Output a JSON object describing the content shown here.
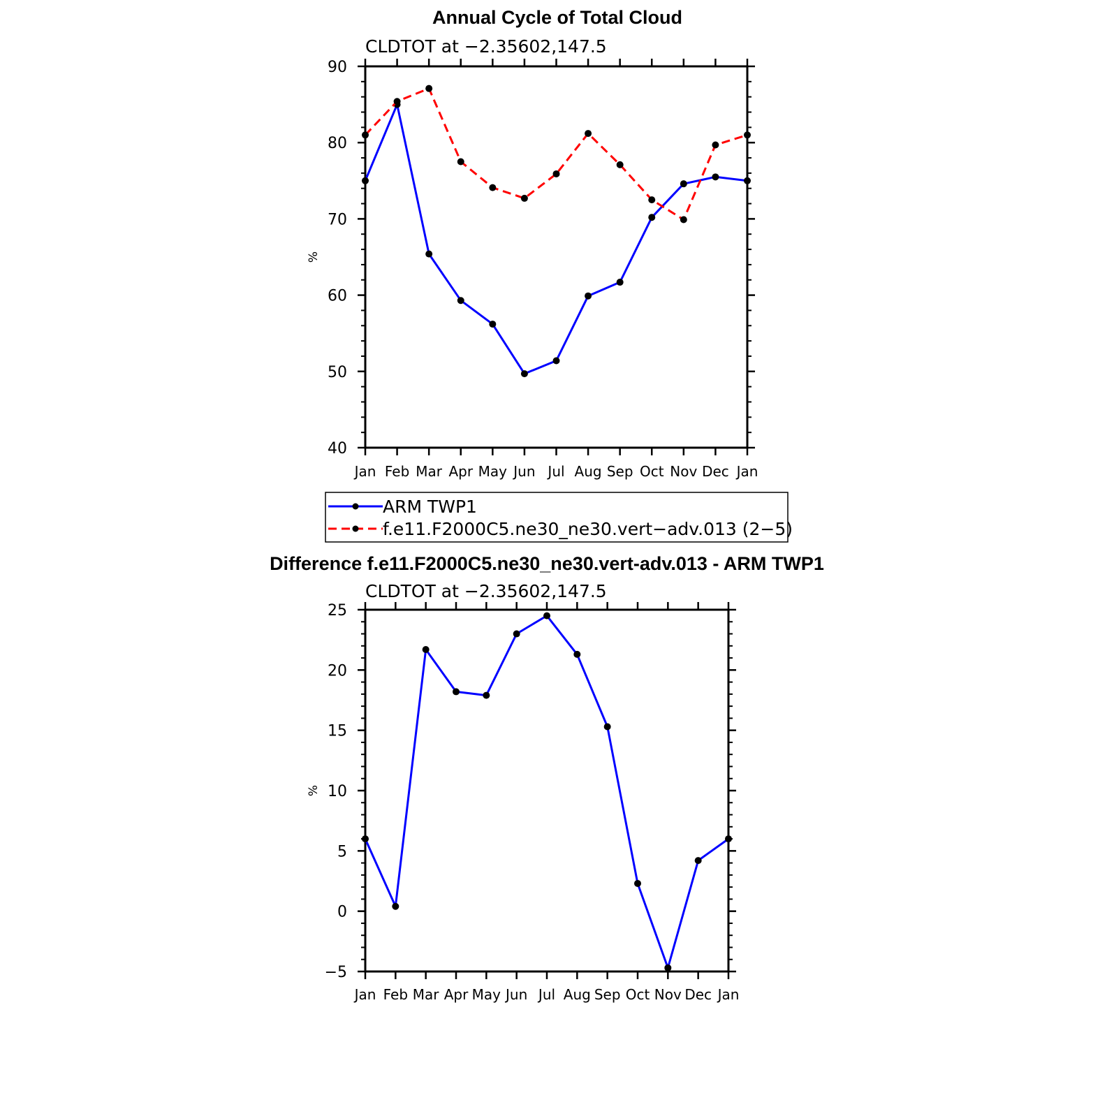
{
  "chart_data": [
    {
      "type": "line",
      "title": "Annual Cycle of Total Cloud",
      "subtitle": "CLDTOT at −2.35602,147.5",
      "ylabel": "%",
      "ylim": [
        40,
        90
      ],
      "yticks": [
        "40",
        "50",
        "60",
        "70",
        "80",
        "90"
      ],
      "categories": [
        "Jan",
        "Feb",
        "Mar",
        "Apr",
        "May",
        "Jun",
        "Jul",
        "Aug",
        "Sep",
        "Oct",
        "Nov",
        "Dec",
        "Jan"
      ],
      "legend_position": "below",
      "series": [
        {
          "name": "ARM TWP1",
          "color": "#0000ff",
          "dash": "solid",
          "values": [
            75.0,
            85.0,
            65.4,
            59.3,
            56.2,
            49.7,
            51.4,
            59.9,
            61.7,
            70.2,
            74.6,
            75.5,
            75.0
          ]
        },
        {
          "name": "f.e11.F2000C5.ne30_ne30.vert−adv.013 (2−5)",
          "color": "#ff0000",
          "dash": "dashed",
          "values": [
            81.0,
            85.4,
            87.1,
            77.5,
            74.1,
            72.7,
            75.9,
            81.2,
            77.1,
            72.5,
            69.9,
            79.7,
            81.0
          ]
        }
      ]
    },
    {
      "type": "line",
      "title": "Difference f.e11.F2000C5.ne30_ne30.vert-adv.013 - ARM TWP1",
      "subtitle": "CLDTOT at −2.35602,147.5",
      "ylabel": "%",
      "ylim": [
        -5,
        25
      ],
      "yticks": [
        "−5",
        "0",
        "5",
        "10",
        "15",
        "20",
        "25"
      ],
      "categories": [
        "Jan",
        "Feb",
        "Mar",
        "Apr",
        "May",
        "Jun",
        "Jul",
        "Aug",
        "Sep",
        "Oct",
        "Nov",
        "Dec",
        "Jan"
      ],
      "series": [
        {
          "name": "",
          "color": "#0000ff",
          "dash": "solid",
          "values": [
            6.0,
            0.4,
            21.7,
            18.2,
            17.9,
            23.0,
            24.5,
            21.3,
            15.3,
            2.3,
            -4.7,
            4.2,
            6.0
          ]
        }
      ]
    }
  ]
}
